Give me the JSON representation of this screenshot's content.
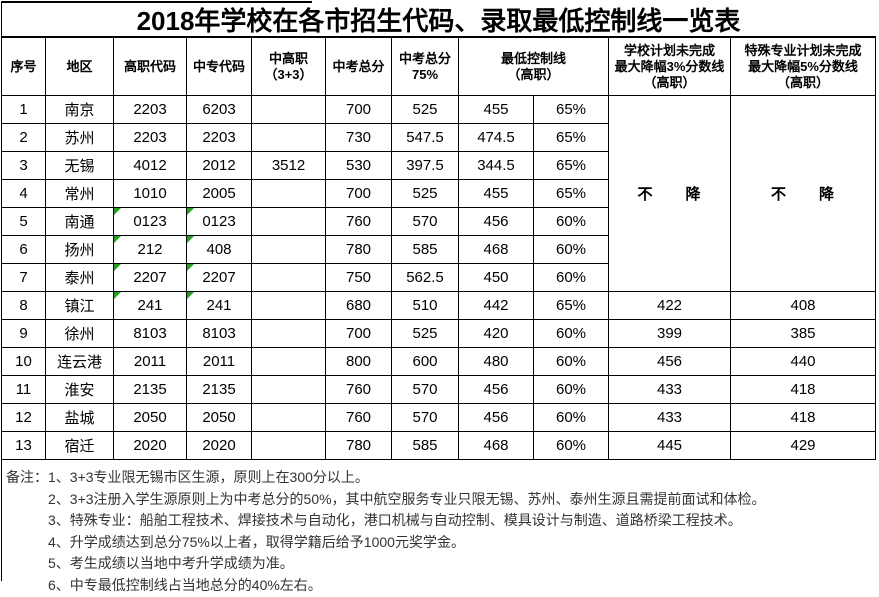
{
  "title": "2018年学校在各市招生代码、录取最低控制线一览表",
  "table": {
    "headers": {
      "seq": "序号",
      "region": "地区",
      "vocational_code": "高职代码",
      "secondary_code": "中专代码",
      "mid_high": "中高职\n（3+3）",
      "exam_total": "中考总分",
      "exam_75": "中考总分\n75%",
      "min_control_line": "最低控制线\n（高职）",
      "school_plan": "学校计划未完成\n最大降幅3%分数线\n（高职）",
      "special_plan": "特殊专业计划未完成\n最大降幅5%分数线\n（高职）"
    },
    "no_drop_school": "不　　降",
    "no_drop_special": "不　　降",
    "rows": [
      {
        "seq": "1",
        "region": "南京",
        "vocational_code": "2203",
        "secondary_code": "6203",
        "mid_high": "",
        "exam_total": "700",
        "exam_75": "525",
        "min_line": "455",
        "min_pct": "65%",
        "school_plan": "",
        "special_plan": "",
        "error_flags": false
      },
      {
        "seq": "2",
        "region": "苏州",
        "vocational_code": "2203",
        "secondary_code": "2203",
        "mid_high": "",
        "exam_total": "730",
        "exam_75": "547.5",
        "min_line": "474.5",
        "min_pct": "65%",
        "school_plan": "",
        "special_plan": "",
        "error_flags": false
      },
      {
        "seq": "3",
        "region": "无锡",
        "vocational_code": "4012",
        "secondary_code": "2012",
        "mid_high": "3512",
        "exam_total": "530",
        "exam_75": "397.5",
        "min_line": "344.5",
        "min_pct": "65%",
        "school_plan": "",
        "special_plan": "",
        "error_flags": false
      },
      {
        "seq": "4",
        "region": "常州",
        "vocational_code": "1010",
        "secondary_code": "2005",
        "mid_high": "",
        "exam_total": "700",
        "exam_75": "525",
        "min_line": "455",
        "min_pct": "65%",
        "school_plan": "",
        "special_plan": "",
        "error_flags": false
      },
      {
        "seq": "5",
        "region": "南通",
        "vocational_code": "0123",
        "secondary_code": "0123",
        "mid_high": "",
        "exam_total": "760",
        "exam_75": "570",
        "min_line": "456",
        "min_pct": "60%",
        "school_plan": "",
        "special_plan": "",
        "error_flags": true
      },
      {
        "seq": "6",
        "region": "扬州",
        "vocational_code": "212",
        "secondary_code": "408",
        "mid_high": "",
        "exam_total": "780",
        "exam_75": "585",
        "min_line": "468",
        "min_pct": "60%",
        "school_plan": "",
        "special_plan": "",
        "error_flags": true
      },
      {
        "seq": "7",
        "region": "泰州",
        "vocational_code": "2207",
        "secondary_code": "2207",
        "mid_high": "",
        "exam_total": "750",
        "exam_75": "562.5",
        "min_line": "450",
        "min_pct": "60%",
        "school_plan": "",
        "special_plan": "",
        "error_flags": true
      },
      {
        "seq": "8",
        "region": "镇江",
        "vocational_code": "241",
        "secondary_code": "241",
        "mid_high": "",
        "exam_total": "680",
        "exam_75": "510",
        "min_line": "442",
        "min_pct": "65%",
        "school_plan": "422",
        "special_plan": "408",
        "error_flags": true
      },
      {
        "seq": "9",
        "region": "徐州",
        "vocational_code": "8103",
        "secondary_code": "8103",
        "mid_high": "",
        "exam_total": "700",
        "exam_75": "525",
        "min_line": "420",
        "min_pct": "60%",
        "school_plan": "399",
        "special_plan": "385",
        "error_flags": false
      },
      {
        "seq": "10",
        "region": "连云港",
        "vocational_code": "2011",
        "secondary_code": "2011",
        "mid_high": "",
        "exam_total": "800",
        "exam_75": "600",
        "min_line": "480",
        "min_pct": "60%",
        "school_plan": "456",
        "special_plan": "440",
        "error_flags": false
      },
      {
        "seq": "11",
        "region": "淮安",
        "vocational_code": "2135",
        "secondary_code": "2135",
        "mid_high": "",
        "exam_total": "760",
        "exam_75": "570",
        "min_line": "456",
        "min_pct": "60%",
        "school_plan": "433",
        "special_plan": "418",
        "error_flags": false
      },
      {
        "seq": "12",
        "region": "盐城",
        "vocational_code": "2050",
        "secondary_code": "2050",
        "mid_high": "",
        "exam_total": "760",
        "exam_75": "570",
        "min_line": "456",
        "min_pct": "60%",
        "school_plan": "433",
        "special_plan": "418",
        "error_flags": false
      },
      {
        "seq": "13",
        "region": "宿迁",
        "vocational_code": "2020",
        "secondary_code": "2020",
        "mid_high": "",
        "exam_total": "780",
        "exam_75": "585",
        "min_line": "468",
        "min_pct": "60%",
        "school_plan": "445",
        "special_plan": "429",
        "error_flags": false
      }
    ]
  },
  "notes": {
    "label": "备注：",
    "items": [
      "1、3+3专业限无锡市区生源，原则上在300分以上。",
      "2、3+3注册入学生源原则上为中考总分的50%，其中航空服务专业只限无锡、苏州、泰州生源且需提前面试和体检。",
      "3、特殊专业：船舶工程技术、焊接技术与自动化，港口机械与自动控制、模具设计与制造、道路桥梁工程技术。",
      "4、升学成绩达到总分75%以上者，取得学籍后给予1000元奖学金。",
      "5、考生成绩以当地中考升学成绩为准。",
      "6、中专最低控制线占当地总分的40%左右。"
    ]
  },
  "colors": {
    "error_indicator": "#22a122",
    "border": "#000000",
    "notes_text": "#333333"
  }
}
